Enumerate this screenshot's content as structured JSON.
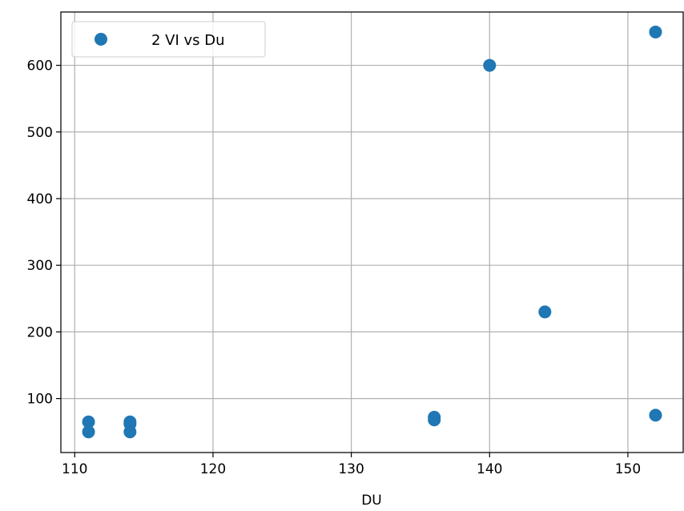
{
  "chart_data": {
    "type": "scatter",
    "title": "",
    "xlabel": "DU",
    "ylabel": "",
    "xlim": [
      109,
      154
    ],
    "ylim": [
      19,
      680
    ],
    "grid": true,
    "legend_position": "top-left",
    "x_ticks": [
      110,
      120,
      130,
      140,
      150
    ],
    "y_ticks": [
      100,
      200,
      300,
      400,
      500,
      600
    ],
    "series": [
      {
        "name": "2 VI vs Du",
        "color": "#1f77b4",
        "points": [
          {
            "x": 111,
            "y": 65
          },
          {
            "x": 111,
            "y": 50
          },
          {
            "x": 114,
            "y": 65
          },
          {
            "x": 114,
            "y": 62
          },
          {
            "x": 114,
            "y": 50
          },
          {
            "x": 136,
            "y": 72
          },
          {
            "x": 136,
            "y": 68
          },
          {
            "x": 140,
            "y": 600
          },
          {
            "x": 144,
            "y": 230
          },
          {
            "x": 152,
            "y": 650
          },
          {
            "x": 152,
            "y": 75
          }
        ]
      }
    ]
  }
}
